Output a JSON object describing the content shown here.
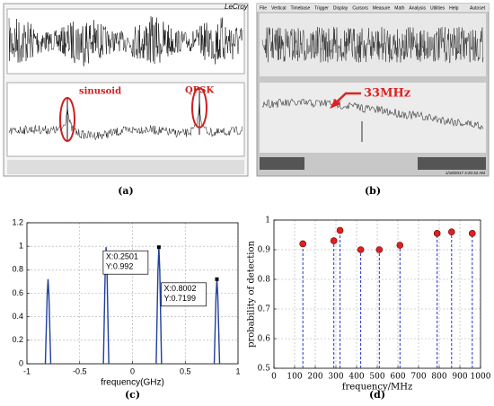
{
  "panel_a": {
    "brand": "LeCroy",
    "labels": [
      "sinusoid",
      "QPSK"
    ],
    "caption": "(a)"
  },
  "panel_b": {
    "menu": [
      "File",
      "Vertical",
      "Timebase",
      "Trigger",
      "Display",
      "Cursors",
      "Measure",
      "Math",
      "Analysis",
      "Utilities",
      "Help"
    ],
    "autoset": "Autoset",
    "label": "33MHz",
    "timestamp": "1/18/2017 4:20:42 AM",
    "caption": "(b)"
  },
  "chart_data": [
    {
      "type": "stem",
      "xlabel": "frequency(GHz)",
      "caption": "(c)",
      "x": [
        -0.8,
        -0.25,
        0.25,
        0.8
      ],
      "values": [
        0.72,
        0.992,
        0.992,
        0.7199
      ],
      "color": "#1f3f9f",
      "xlim": [
        -1,
        1
      ],
      "xticks": [
        -1,
        -0.5,
        0,
        0.5,
        1
      ],
      "ylim": [
        0,
        1.2
      ],
      "yticks": [
        0,
        0.2,
        0.4,
        0.6,
        0.8,
        1,
        1.2
      ],
      "grid": true,
      "annotations": [
        [
          "X:0.2501",
          "Y:0.992"
        ],
        [
          "X:0.8002",
          "Y:0.7199"
        ]
      ]
    },
    {
      "type": "stem",
      "xlabel": "frequency/MHz",
      "ylabel": "probability of detection",
      "caption": "(d)",
      "x": [
        140,
        290,
        320,
        420,
        510,
        610,
        790,
        860,
        960
      ],
      "values": [
        0.92,
        0.93,
        0.965,
        0.9,
        0.9,
        0.915,
        0.955,
        0.96,
        0.955
      ],
      "color": "#2233cc",
      "marker_color": "#e02020",
      "marker": "circle",
      "line_style": "dashed",
      "xlim": [
        0,
        1000
      ],
      "xticks": [
        0,
        100,
        200,
        300,
        400,
        500,
        600,
        700,
        800,
        900,
        1000
      ],
      "ylim": [
        0.5,
        1
      ],
      "yticks": [
        0.5,
        0.6,
        0.7,
        0.8,
        0.9,
        1
      ],
      "grid": true
    }
  ]
}
